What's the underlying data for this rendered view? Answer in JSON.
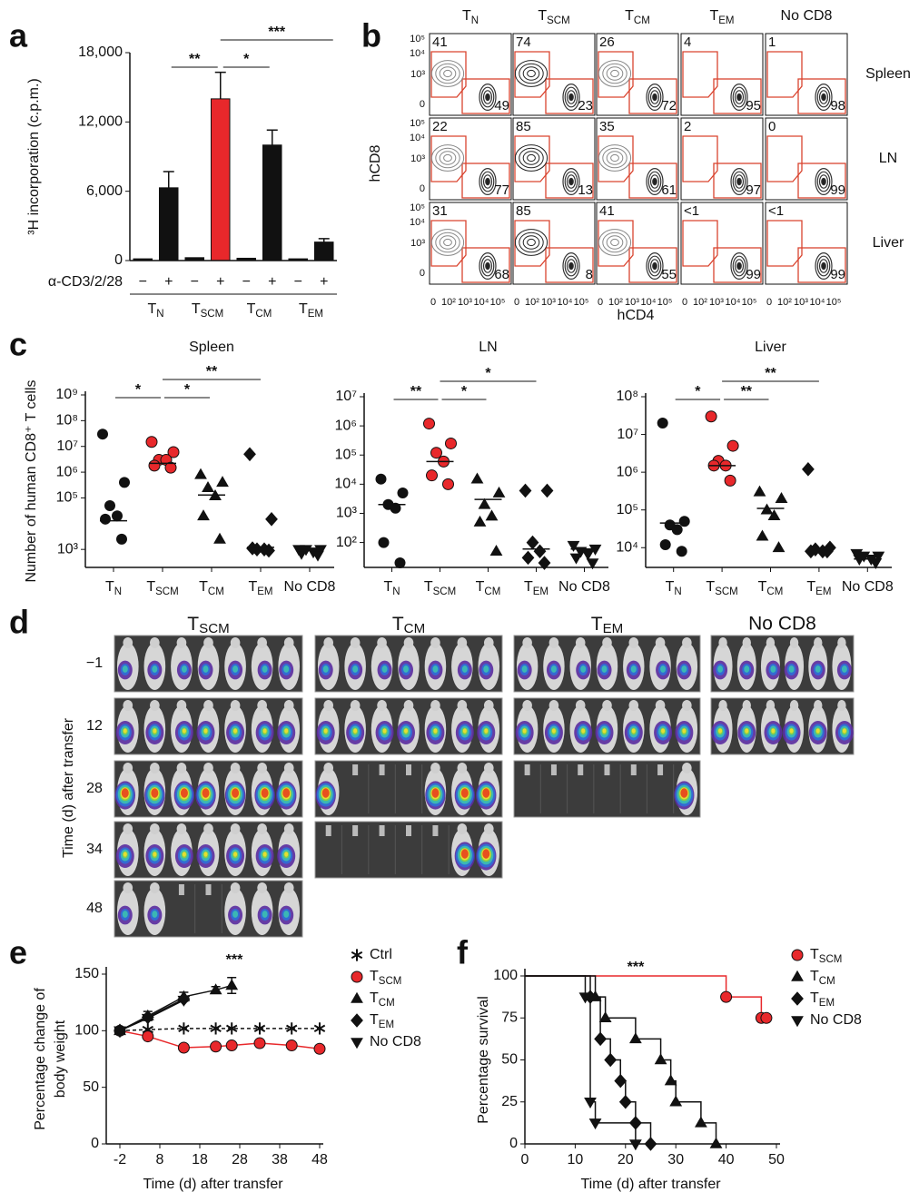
{
  "chart_data": [
    {
      "panel": "a",
      "type": "bar",
      "ylabel": "³H incorporation (c.p.m.)",
      "categories": [
        "−",
        "+",
        "−",
        "+",
        "−",
        "+",
        "−",
        "+"
      ],
      "values": [
        150,
        6300,
        250,
        14000,
        200,
        10000,
        150,
        1600
      ],
      "errors": [
        null,
        1400,
        null,
        2300,
        null,
        1300,
        null,
        300
      ],
      "colors": [
        "#111111",
        "#111111",
        "#111111",
        "#e8282b",
        "#111111",
        "#111111",
        "#111111",
        "#111111"
      ],
      "row_label": "α-CD3/2/28",
      "groups": [
        [
          "T",
          "N"
        ],
        [
          "T",
          "SCM"
        ],
        [
          "T",
          "CM"
        ],
        [
          "T",
          "EM"
        ]
      ],
      "ylim": [
        0,
        18000
      ],
      "yticks": [
        0,
        {
          "value": 6000,
          "label": "6,000"
        },
        {
          "value": 12000,
          "label": "12,000"
        },
        {
          "value": 18000,
          "label": "18,000"
        }
      ],
      "significance": [
        "**",
        "*",
        "***"
      ]
    },
    {
      "panel": "c",
      "type": "dot",
      "title": "Spleen",
      "ylabel": "Number of human CD8⁺ T cells",
      "log_scale": true,
      "categories": [
        [
          "T",
          "N"
        ],
        [
          "T",
          "SCM"
        ],
        [
          "T",
          "CM"
        ],
        [
          "T",
          "EM"
        ],
        "No CD8"
      ],
      "markers": [
        "circle",
        "circle",
        "triangle",
        "diamond",
        "triangle-down"
      ],
      "colors": [
        "#111111",
        "#e8282b",
        "#111111",
        "#111111",
        "#111111"
      ],
      "values": [
        [
          30000000,
          400000,
          50000,
          20000,
          15000,
          2500
        ],
        [
          15000000,
          6000000,
          3000000,
          3000000,
          1800000,
          1500000
        ],
        [
          800000,
          400000,
          250000,
          120000,
          20000,
          2500
        ],
        [
          5000000,
          15000,
          1000,
          1000,
          1100,
          900
        ],
        [
          1000,
          1000,
          1000,
          800,
          700,
          600
        ]
      ],
      "medians": [
        13000,
        2200000,
        130000,
        1200,
        900
      ],
      "ylim": [
        200,
        1000000000.0
      ],
      "yticks": [
        {
          "value": 1000,
          "label": "10³"
        },
        {
          "value": 100000,
          "label": "10⁵"
        },
        {
          "value": 1000000,
          "label": "10⁶"
        },
        {
          "value": 10000000,
          "label": "10⁷"
        },
        {
          "value": 100000000,
          "label": "10⁸"
        },
        {
          "value": 1000000000,
          "label": "10⁹"
        }
      ],
      "significance": [
        "*",
        "*",
        "**"
      ]
    },
    {
      "type": "dot",
      "title": "LN",
      "log_scale": true,
      "categories": [
        [
          "T",
          "N"
        ],
        [
          "T",
          "SCM"
        ],
        [
          "T",
          "CM"
        ],
        [
          "T",
          "EM"
        ],
        "No CD8"
      ],
      "markers": [
        "circle",
        "circle",
        "triangle",
        "diamond",
        "triangle-down"
      ],
      "colors": [
        "#111111",
        "#e8282b",
        "#111111",
        "#111111",
        "#111111"
      ],
      "values": [
        [
          15000,
          5000,
          2000,
          1500,
          100,
          20
        ],
        [
          1200000,
          250000,
          120000,
          60000,
          20000,
          10000
        ],
        [
          15000,
          5000,
          2000,
          800,
          500,
          50
        ],
        [
          6000,
          6000,
          100,
          50,
          30,
          20
        ],
        [
          80,
          60,
          50,
          40,
          30,
          20
        ]
      ],
      "medians": [
        2000,
        60000,
        3000,
        60,
        60
      ],
      "ylim": [
        14,
        10000000
      ],
      "yticks": [
        {
          "value": 100,
          "label": "10²"
        },
        {
          "value": 1000,
          "label": "10³"
        },
        {
          "value": 10000,
          "label": "10⁴"
        },
        {
          "value": 100000,
          "label": "10⁵"
        },
        {
          "value": 1000000,
          "label": "10⁶"
        },
        {
          "value": 10000000,
          "label": "10⁷"
        }
      ],
      "significance": [
        "**",
        "*",
        "*"
      ]
    },
    {
      "type": "dot",
      "title": "Liver",
      "log_scale": true,
      "categories": [
        [
          "T",
          "N"
        ],
        [
          "T",
          "SCM"
        ],
        [
          "T",
          "CM"
        ],
        [
          "T",
          "EM"
        ],
        "No CD8"
      ],
      "markers": [
        "circle",
        "circle",
        "triangle",
        "diamond",
        "triangle-down"
      ],
      "colors": [
        "#111111",
        "#e8282b",
        "#111111",
        "#111111",
        "#111111"
      ],
      "values": [
        [
          20000000,
          50000,
          40000,
          30000,
          12000,
          8000
        ],
        [
          30000000,
          5000000,
          2000000,
          1500000,
          1500000,
          600000
        ],
        [
          300000,
          200000,
          100000,
          70000,
          20000,
          10000
        ],
        [
          1200000,
          10000,
          9000,
          8000,
          8000,
          8000
        ],
        [
          7000,
          6000,
          6000,
          5000,
          5000,
          4000
        ]
      ],
      "medians": [
        45000,
        1500000,
        110000,
        8000,
        5000
      ],
      "ylim": [
        3000,
        100000000
      ],
      "yticks": [
        {
          "value": 10000,
          "label": "10⁴"
        },
        {
          "value": 100000,
          "label": "10⁵"
        },
        {
          "value": 1000000,
          "label": "10⁶"
        },
        {
          "value": 10000000,
          "label": "10⁷"
        },
        {
          "value": 100000000,
          "label": "10⁸"
        }
      ],
      "significance": [
        "*",
        "**",
        "**"
      ]
    },
    {
      "panel": "e",
      "type": "line",
      "xlabel": "Time (d) after transfer",
      "ylabel": [
        "Percentage change of",
        "body weight"
      ],
      "annotation": "***",
      "xlim": [
        -2,
        48
      ],
      "xticks": [
        -2,
        8,
        18,
        28,
        38,
        48
      ],
      "ylim": [
        0,
        150
      ],
      "yticks": [
        0,
        50,
        100,
        150
      ],
      "series": [
        {
          "name": "Ctrl",
          "color": "#111111",
          "marker": "asterisk",
          "dash": true,
          "x": [
            -2,
            5,
            14,
            22,
            26,
            33,
            41,
            48
          ],
          "values": [
            100,
            101,
            102,
            102,
            102,
            102,
            102,
            102
          ]
        },
        {
          "name": [
            "T",
            "SCM"
          ],
          "color": "#e8282b",
          "marker": "circle",
          "x": [
            -2,
            5,
            14,
            22,
            26,
            33,
            41,
            48
          ],
          "values": [
            100,
            95,
            85,
            86,
            87,
            89,
            87,
            84
          ]
        },
        {
          "name": [
            "T",
            "CM"
          ],
          "color": "#111111",
          "marker": "triangle",
          "x": [
            -2,
            5,
            14,
            22,
            26
          ],
          "values": [
            100,
            113,
            130,
            136,
            140
          ],
          "errors": [
            null,
            4,
            4,
            3,
            7
          ]
        },
        {
          "name": [
            "T",
            "EM"
          ],
          "color": "#111111",
          "marker": "diamond",
          "x": [
            -2,
            5,
            14
          ],
          "values": [
            100,
            112,
            128
          ]
        },
        {
          "name": "No CD8",
          "color": "#111111",
          "marker": "triangle-down",
          "x": [
            -2,
            5,
            14
          ],
          "values": [
            100,
            111,
            127
          ]
        }
      ]
    },
    {
      "panel": "f",
      "type": "step",
      "xlabel": "Time (d) after transfer",
      "ylabel": "Percentage survival",
      "annotation": "***",
      "xlim": [
        0,
        50
      ],
      "xticks": [
        0,
        10,
        20,
        30,
        40,
        50
      ],
      "ylim": [
        0,
        100
      ],
      "yticks": [
        0,
        25,
        50,
        75,
        100
      ],
      "series": [
        {
          "name": [
            "T",
            "SCM"
          ],
          "color": "#e8282b",
          "marker": "circle",
          "x": [
            0,
            40,
            47,
            48
          ],
          "values": [
            100,
            87.5,
            75,
            75
          ]
        },
        {
          "name": [
            "T",
            "CM"
          ],
          "color": "#111111",
          "marker": "triangle",
          "x": [
            0,
            14,
            16,
            22,
            27,
            29,
            30,
            35,
            38
          ],
          "values": [
            100,
            87.5,
            75,
            62.5,
            50,
            37.5,
            25,
            12.5,
            0
          ]
        },
        {
          "name": [
            "T",
            "EM"
          ],
          "color": "#111111",
          "marker": "diamond",
          "x": [
            0,
            13,
            15,
            17,
            19,
            20,
            22,
            25
          ],
          "values": [
            100,
            87.5,
            62.5,
            50,
            37.5,
            25,
            12.5,
            0
          ]
        },
        {
          "name": "No CD8",
          "color": "#111111",
          "marker": "triangle-down",
          "x": [
            0,
            12,
            13,
            14,
            22
          ],
          "values": [
            100,
            87.5,
            25,
            12.5,
            0
          ]
        }
      ]
    }
  ],
  "flow_panel": {
    "letter": "b",
    "columns": [
      [
        "T",
        "N"
      ],
      [
        "T",
        "SCM"
      ],
      [
        "T",
        "CM"
      ],
      [
        "T",
        "EM"
      ],
      "No CD8"
    ],
    "rows": [
      "Spleen",
      "LN",
      "Liver"
    ],
    "ylabel": "hCD8",
    "xlabel": "hCD4",
    "y_tick_labels": [
      "10⁵",
      "10⁴",
      "10³",
      "0"
    ],
    "x_tick_labels": [
      "0",
      "10²",
      "10³",
      "10⁴",
      "10⁵"
    ],
    "cells": [
      [
        [
          41,
          49
        ],
        [
          74,
          23
        ],
        [
          26,
          72
        ],
        [
          4,
          95
        ],
        [
          1,
          98
        ]
      ],
      [
        [
          22,
          77
        ],
        [
          85,
          13
        ],
        [
          35,
          61
        ],
        [
          2,
          97
        ],
        [
          0,
          99
        ]
      ],
      [
        [
          31,
          68
        ],
        [
          85,
          8
        ],
        [
          41,
          55
        ],
        [
          "<1",
          99
        ],
        [
          "<1",
          99
        ]
      ]
    ]
  },
  "imaging_panel": {
    "letter": "d",
    "columns": [
      [
        "T",
        "SCM"
      ],
      [
        "T",
        "CM"
      ],
      [
        "T",
        "EM"
      ],
      "No CD8"
    ],
    "rows": [
      "−1",
      "12",
      "28",
      "34",
      "48"
    ],
    "ylabel": "Time (d) after transfer"
  }
}
